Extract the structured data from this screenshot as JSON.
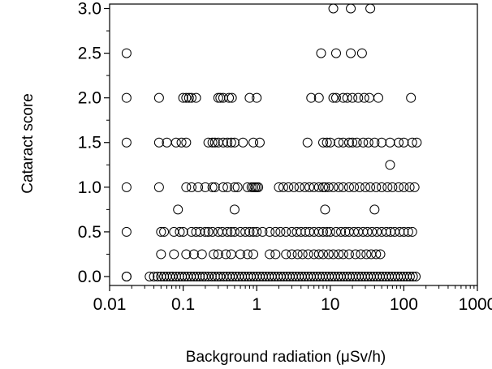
{
  "chart_data": {
    "type": "scatter",
    "title": "",
    "xlabel": "Background radiation (μSv/h)",
    "ylabel": "Cataract score",
    "xscale": "log",
    "xlim": [
      0.01,
      1000
    ],
    "ylim": [
      -0.1,
      3.05
    ],
    "xticks": [
      0.01,
      0.1,
      1,
      10,
      100,
      1000
    ],
    "xtick_labels": [
      "0.01",
      "0.1",
      "1",
      "10",
      "100",
      "1000"
    ],
    "yticks": [
      0,
      0.5,
      1,
      1.5,
      2,
      2.5,
      3
    ],
    "ytick_labels": [
      "0.0",
      "0.5",
      "1.0",
      "1.5",
      "2.0",
      "2.5",
      "3.0"
    ],
    "grid": false,
    "legend": "none",
    "marker": "open-circle",
    "series": [
      {
        "points": [
          [
            0.017,
            0
          ],
          [
            0.017,
            0.5
          ],
          [
            0.017,
            1.0
          ],
          [
            0.017,
            1.5
          ],
          [
            0.017,
            2.0
          ],
          [
            0.017,
            2.5
          ],
          [
            0.047,
            2.0
          ],
          [
            0.1,
            2.0
          ],
          [
            0.11,
            2.0
          ],
          [
            0.12,
            2.0
          ],
          [
            0.13,
            2.0
          ],
          [
            0.15,
            2.0
          ],
          [
            0.3,
            2.0
          ],
          [
            0.32,
            2.0
          ],
          [
            0.35,
            2.0
          ],
          [
            0.42,
            2.0
          ],
          [
            0.46,
            2.0
          ],
          [
            0.8,
            2.0
          ],
          [
            1.0,
            2.0
          ],
          [
            5.5,
            2.0
          ],
          [
            7.0,
            2.0
          ],
          [
            11,
            2.0
          ],
          [
            12,
            2.0
          ],
          [
            15,
            2.0
          ],
          [
            17,
            2.0
          ],
          [
            20,
            2.0
          ],
          [
            24,
            2.0
          ],
          [
            29,
            2.0
          ],
          [
            34,
            2.0
          ],
          [
            45,
            2.0
          ],
          [
            125,
            2.0
          ],
          [
            0.047,
            1.5
          ],
          [
            0.06,
            1.5
          ],
          [
            0.08,
            1.5
          ],
          [
            0.095,
            1.5
          ],
          [
            0.11,
            1.5
          ],
          [
            0.22,
            1.5
          ],
          [
            0.25,
            1.5
          ],
          [
            0.27,
            1.5
          ],
          [
            0.3,
            1.5
          ],
          [
            0.35,
            1.5
          ],
          [
            0.4,
            1.5
          ],
          [
            0.45,
            1.5
          ],
          [
            0.5,
            1.5
          ],
          [
            0.65,
            1.5
          ],
          [
            0.9,
            1.5
          ],
          [
            1.1,
            1.5
          ],
          [
            4.9,
            1.5
          ],
          [
            8,
            1.5
          ],
          [
            9,
            1.5
          ],
          [
            10,
            1.5
          ],
          [
            13,
            1.5
          ],
          [
            15,
            1.5
          ],
          [
            18,
            1.5
          ],
          [
            20,
            1.5
          ],
          [
            23,
            1.5
          ],
          [
            28,
            1.5
          ],
          [
            33,
            1.5
          ],
          [
            40,
            1.5
          ],
          [
            50,
            1.5
          ],
          [
            65,
            1.5
          ],
          [
            85,
            1.5
          ],
          [
            100,
            1.5
          ],
          [
            130,
            1.5
          ],
          [
            150,
            1.5
          ],
          [
            65,
            1.25
          ],
          [
            0.047,
            1.0
          ],
          [
            0.11,
            1.0
          ],
          [
            0.13,
            1.0
          ],
          [
            0.16,
            1.0
          ],
          [
            0.2,
            1.0
          ],
          [
            0.25,
            1.0
          ],
          [
            0.27,
            1.0
          ],
          [
            0.35,
            1.0
          ],
          [
            0.4,
            1.0
          ],
          [
            0.5,
            1.0
          ],
          [
            0.55,
            1.0
          ],
          [
            0.75,
            1.0
          ],
          [
            0.85,
            1.0
          ],
          [
            0.9,
            1.0
          ],
          [
            0.95,
            1.0
          ],
          [
            1.0,
            1.0
          ],
          [
            1.05,
            1.0
          ],
          [
            2,
            1.0
          ],
          [
            2.3,
            1.0
          ],
          [
            2.7,
            1.0
          ],
          [
            3.2,
            1.0
          ],
          [
            3.8,
            1.0
          ],
          [
            4.5,
            1.0
          ],
          [
            5.2,
            1.0
          ],
          [
            6,
            1.0
          ],
          [
            7,
            1.0
          ],
          [
            8,
            1.0
          ],
          [
            8.5,
            1.0
          ],
          [
            9.5,
            1.0
          ],
          [
            11,
            1.0
          ],
          [
            13,
            1.0
          ],
          [
            15,
            1.0
          ],
          [
            18,
            1.0
          ],
          [
            21,
            1.0
          ],
          [
            25,
            1.0
          ],
          [
            30,
            1.0
          ],
          [
            35,
            1.0
          ],
          [
            42,
            1.0
          ],
          [
            50,
            1.0
          ],
          [
            60,
            1.0
          ],
          [
            70,
            1.0
          ],
          [
            85,
            1.0
          ],
          [
            100,
            1.0
          ],
          [
            120,
            1.0
          ],
          [
            140,
            1.0
          ],
          [
            0.085,
            0.75
          ],
          [
            0.5,
            0.75
          ],
          [
            8.5,
            0.75
          ],
          [
            40,
            0.75
          ],
          [
            0.05,
            0.5
          ],
          [
            0.055,
            0.5
          ],
          [
            0.075,
            0.5
          ],
          [
            0.09,
            0.5
          ],
          [
            0.1,
            0.5
          ],
          [
            0.13,
            0.5
          ],
          [
            0.15,
            0.5
          ],
          [
            0.17,
            0.5
          ],
          [
            0.2,
            0.5
          ],
          [
            0.22,
            0.5
          ],
          [
            0.25,
            0.5
          ],
          [
            0.3,
            0.5
          ],
          [
            0.34,
            0.5
          ],
          [
            0.4,
            0.5
          ],
          [
            0.45,
            0.5
          ],
          [
            0.5,
            0.5
          ],
          [
            0.6,
            0.5
          ],
          [
            0.7,
            0.5
          ],
          [
            0.8,
            0.5
          ],
          [
            0.9,
            0.5
          ],
          [
            1.0,
            0.5
          ],
          [
            1.2,
            0.5
          ],
          [
            1.5,
            0.5
          ],
          [
            1.8,
            0.5
          ],
          [
            2.1,
            0.5
          ],
          [
            2.5,
            0.5
          ],
          [
            3,
            0.5
          ],
          [
            3.5,
            0.5
          ],
          [
            4,
            0.5
          ],
          [
            4.6,
            0.5
          ],
          [
            5.2,
            0.5
          ],
          [
            6,
            0.5
          ],
          [
            7,
            0.5
          ],
          [
            8,
            0.5
          ],
          [
            9,
            0.5
          ],
          [
            10,
            0.5
          ],
          [
            12,
            0.5
          ],
          [
            14,
            0.5
          ],
          [
            16,
            0.5
          ],
          [
            18,
            0.5
          ],
          [
            21,
            0.5
          ],
          [
            24,
            0.5
          ],
          [
            28,
            0.5
          ],
          [
            32,
            0.5
          ],
          [
            37,
            0.5
          ],
          [
            43,
            0.5
          ],
          [
            50,
            0.5
          ],
          [
            58,
            0.5
          ],
          [
            66,
            0.5
          ],
          [
            75,
            0.5
          ],
          [
            88,
            0.5
          ],
          [
            100,
            0.5
          ],
          [
            115,
            0.5
          ],
          [
            130,
            0.5
          ],
          [
            0.05,
            0.25
          ],
          [
            0.075,
            0.25
          ],
          [
            0.11,
            0.25
          ],
          [
            0.14,
            0.25
          ],
          [
            0.18,
            0.25
          ],
          [
            0.26,
            0.25
          ],
          [
            0.3,
            0.25
          ],
          [
            0.38,
            0.25
          ],
          [
            0.45,
            0.25
          ],
          [
            0.6,
            0.25
          ],
          [
            0.75,
            0.25
          ],
          [
            0.9,
            0.25
          ],
          [
            1.5,
            0.25
          ],
          [
            1.8,
            0.25
          ],
          [
            2.5,
            0.25
          ],
          [
            3,
            0.25
          ],
          [
            3.6,
            0.25
          ],
          [
            4.2,
            0.25
          ],
          [
            5,
            0.25
          ],
          [
            6,
            0.25
          ],
          [
            7,
            0.25
          ],
          [
            8,
            0.25
          ],
          [
            9.5,
            0.25
          ],
          [
            11,
            0.25
          ],
          [
            13,
            0.25
          ],
          [
            15,
            0.25
          ],
          [
            18,
            0.25
          ],
          [
            22,
            0.25
          ],
          [
            26,
            0.25
          ],
          [
            31,
            0.25
          ],
          [
            36,
            0.25
          ],
          [
            42,
            0.25
          ],
          [
            48,
            0.25
          ],
          [
            0.017,
            0
          ],
          [
            0.035,
            0
          ],
          [
            0.04,
            0
          ],
          [
            0.045,
            0
          ],
          [
            0.05,
            0
          ],
          [
            0.055,
            0
          ],
          [
            0.06,
            0
          ],
          [
            0.066,
            0
          ],
          [
            0.072,
            0
          ],
          [
            0.08,
            0
          ],
          [
            0.088,
            0
          ],
          [
            0.096,
            0
          ],
          [
            0.105,
            0
          ],
          [
            0.115,
            0
          ],
          [
            0.127,
            0
          ],
          [
            0.14,
            0
          ],
          [
            0.153,
            0
          ],
          [
            0.168,
            0
          ],
          [
            0.185,
            0
          ],
          [
            0.2,
            0
          ],
          [
            0.22,
            0
          ],
          [
            0.245,
            0
          ],
          [
            0.27,
            0
          ],
          [
            0.295,
            0
          ],
          [
            0.32,
            0
          ],
          [
            0.355,
            0
          ],
          [
            0.39,
            0
          ],
          [
            0.43,
            0
          ],
          [
            0.47,
            0
          ],
          [
            0.52,
            0
          ],
          [
            0.57,
            0
          ],
          [
            0.63,
            0
          ],
          [
            0.69,
            0
          ],
          [
            0.76,
            0
          ],
          [
            0.83,
            0
          ],
          [
            0.91,
            0
          ],
          [
            1.0,
            0
          ],
          [
            1.1,
            0
          ],
          [
            1.21,
            0
          ],
          [
            1.33,
            0
          ],
          [
            1.46,
            0
          ],
          [
            1.6,
            0
          ],
          [
            1.76,
            0
          ],
          [
            1.93,
            0
          ],
          [
            2.12,
            0
          ],
          [
            2.33,
            0
          ],
          [
            2.56,
            0
          ],
          [
            2.81,
            0
          ],
          [
            3.09,
            0
          ],
          [
            3.4,
            0
          ],
          [
            3.73,
            0
          ],
          [
            4.1,
            0
          ],
          [
            4.5,
            0
          ],
          [
            4.95,
            0
          ],
          [
            5.44,
            0
          ],
          [
            5.97,
            0
          ],
          [
            6.56,
            0
          ],
          [
            7.2,
            0
          ],
          [
            7.91,
            0
          ],
          [
            8.7,
            0
          ],
          [
            9.55,
            0
          ],
          [
            10.5,
            0
          ],
          [
            11.5,
            0
          ],
          [
            12.7,
            0
          ],
          [
            13.9,
            0
          ],
          [
            15.3,
            0
          ],
          [
            16.8,
            0
          ],
          [
            18.4,
            0
          ],
          [
            20.2,
            0
          ],
          [
            22.2,
            0
          ],
          [
            24.4,
            0
          ],
          [
            26.8,
            0
          ],
          [
            29.5,
            0
          ],
          [
            32.4,
            0
          ],
          [
            35.6,
            0
          ],
          [
            39.1,
            0
          ],
          [
            43,
            0
          ],
          [
            47.2,
            0
          ],
          [
            51.9,
            0
          ],
          [
            57,
            0
          ],
          [
            62.6,
            0
          ],
          [
            68.8,
            0
          ],
          [
            75.6,
            0
          ],
          [
            83,
            0
          ],
          [
            91.2,
            0
          ],
          [
            100,
            0
          ],
          [
            110,
            0
          ],
          [
            121,
            0
          ],
          [
            133,
            0
          ],
          [
            145,
            0
          ],
          [
            7.5,
            2.5
          ],
          [
            12,
            2.5
          ],
          [
            19,
            2.5
          ],
          [
            27,
            2.5
          ],
          [
            11,
            3.0
          ],
          [
            19,
            3.0
          ],
          [
            35,
            3.0
          ]
        ]
      }
    ]
  }
}
